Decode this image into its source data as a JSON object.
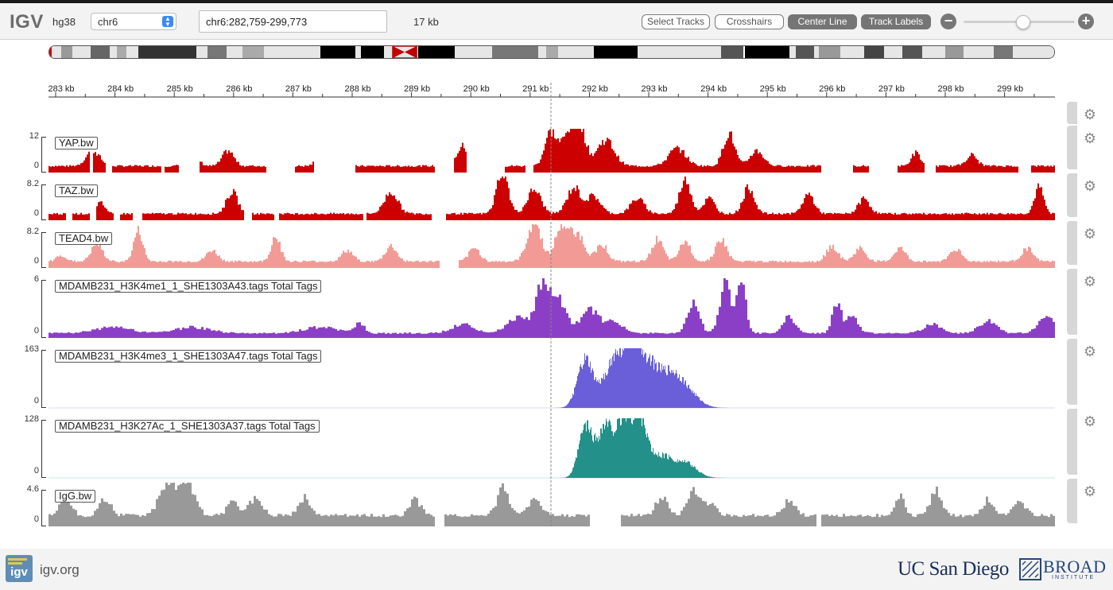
{
  "app": {
    "logo": "IGV",
    "genome": "hg38"
  },
  "navbar": {
    "chromosome": "chr6",
    "locus": "chr6:282,759-299,773",
    "window_width": "17 kb",
    "buttons": {
      "select_tracks": "Select Tracks",
      "crosshairs": "Crosshairs",
      "center_line": "Center Line",
      "track_labels": "Track Labels"
    },
    "zoom": {
      "minus": "−",
      "plus": "+",
      "level": 0.55
    }
  },
  "ruler": {
    "tick_labels": [
      "283 kb",
      "284 kb",
      "285 kb",
      "286 kb",
      "287 kb",
      "288 kb",
      "289 kb",
      "290 kb",
      "291 kb",
      "292 kb",
      "293 kb",
      "294 kb",
      "295 kb",
      "296 kb",
      "297 kb",
      "298 kb",
      "299 kb"
    ]
  },
  "tracks": [
    {
      "name": "YAP.bw",
      "max": "12",
      "min": "0",
      "color": "#cc0000"
    },
    {
      "name": "TAZ.bw",
      "max": "8.2",
      "min": "0",
      "color": "#cc0000"
    },
    {
      "name": "TEAD4.bw",
      "max": "8.2",
      "min": "0",
      "color": "#f29b96"
    },
    {
      "name": "MDAMB231_H3K4me1_1_SHE1303A43.tags Total Tags",
      "max": "6",
      "min": "0",
      "color": "#8b3fc6"
    },
    {
      "name": "MDAMB231_H3K4me3_1_SHE1303A47.tags Total Tags",
      "max": "163",
      "min": "0",
      "color": "#6a5fd9"
    },
    {
      "name": "MDAMB231_H3K27Ac_1_SHE1303A37.tags Total Tags",
      "max": "128",
      "min": "0",
      "color": "#23908a"
    },
    {
      "name": "IgG.bw",
      "max": "4.6",
      "min": "0",
      "color": "#999999"
    }
  ],
  "footer": {
    "site": "igv.org",
    "igv_icon_text": "igv",
    "ucsd": "UC San Diego",
    "broad": "BROAD",
    "broad_sub": "INSTITUTE"
  }
}
